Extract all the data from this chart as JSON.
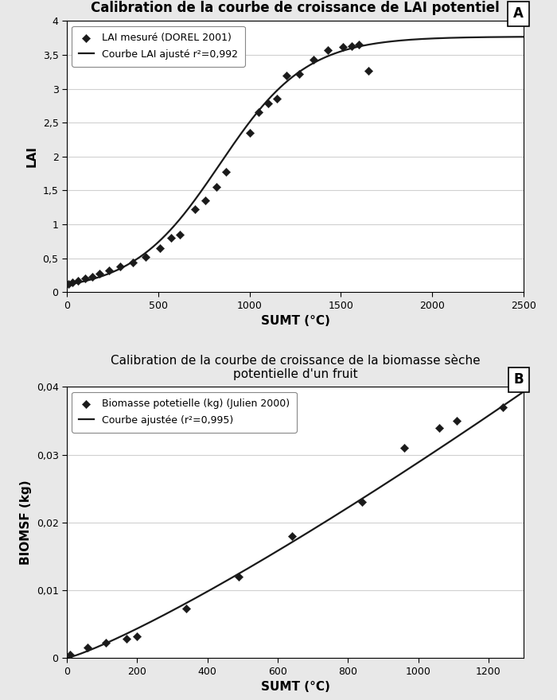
{
  "panel_A": {
    "title": "Calibration de la courbe de croissance de LAI potentiel",
    "label": "A",
    "xlabel": "SUMT (°C)",
    "ylabel": "LAI",
    "xlim": [
      0,
      2500
    ],
    "ylim": [
      0,
      4
    ],
    "xticks": [
      0,
      500,
      1000,
      1500,
      2000,
      2500
    ],
    "yticks": [
      0,
      0.5,
      1,
      1.5,
      2,
      2.5,
      3,
      3.5,
      4
    ],
    "ytick_labels": [
      "0",
      "0,5",
      "1",
      "1,5",
      "2",
      "2,5",
      "3",
      "3,5",
      "4"
    ],
    "scatter_x": [
      10,
      30,
      60,
      100,
      140,
      180,
      230,
      290,
      360,
      430,
      510,
      570,
      620,
      700,
      760,
      820,
      870,
      1000,
      1050,
      1100,
      1150,
      1200,
      1270,
      1350,
      1430,
      1510,
      1560,
      1600,
      1650
    ],
    "scatter_y": [
      0.12,
      0.14,
      0.17,
      0.2,
      0.22,
      0.27,
      0.32,
      0.38,
      0.44,
      0.52,
      0.65,
      0.8,
      0.85,
      1.22,
      1.35,
      1.55,
      1.77,
      2.35,
      2.65,
      2.78,
      2.85,
      3.2,
      3.22,
      3.43,
      3.57,
      3.62,
      3.63,
      3.65,
      3.26
    ],
    "curve_params": {
      "A": 3.77,
      "B": 836.8,
      "C": 237.7
    },
    "legend_scatter": "LAI mesuré (DOREL 2001)",
    "legend_curve": "Courbe LAI ajusté r²=0,992",
    "scatter_color": "#1a1a1a",
    "curve_color": "#1a1a1a",
    "bg_color": "#ffffff",
    "grid_color": "#d0d0d0"
  },
  "panel_B": {
    "title": "Calibration de la courbe de croissance de la biomasse sèche\npotentielle d'un fruit",
    "label": "B",
    "xlabel": "SUMT (°C)",
    "ylabel": "BIOMSF (kg)",
    "xlim": [
      0,
      1300
    ],
    "ylim": [
      0,
      0.04
    ],
    "xticks": [
      0,
      200,
      400,
      600,
      800,
      1000,
      1200
    ],
    "yticks": [
      0,
      0.01,
      0.02,
      0.03,
      0.04
    ],
    "ytick_labels": [
      "0",
      "0,01",
      "0,02",
      "0,03",
      "0,04"
    ],
    "scatter_x": [
      10,
      60,
      110,
      170,
      200,
      340,
      490,
      640,
      840,
      960,
      1060,
      1110,
      1240
    ],
    "scatter_y": [
      0.0005,
      0.0015,
      0.0022,
      0.0028,
      0.0032,
      0.0073,
      0.012,
      0.018,
      0.023,
      0.031,
      0.034,
      0.035,
      0.037
    ],
    "curve_params": {
      "a": 2.5e-06,
      "b": 1.6
    },
    "legend_scatter": "Biomasse potetielle (kg) (Julien 2000)",
    "legend_curve": "Courbe ajustée (r²=0,995)",
    "scatter_color": "#1a1a1a",
    "curve_color": "#1a1a1a",
    "bg_color": "#ffffff",
    "grid_color": "#d0d0d0"
  }
}
